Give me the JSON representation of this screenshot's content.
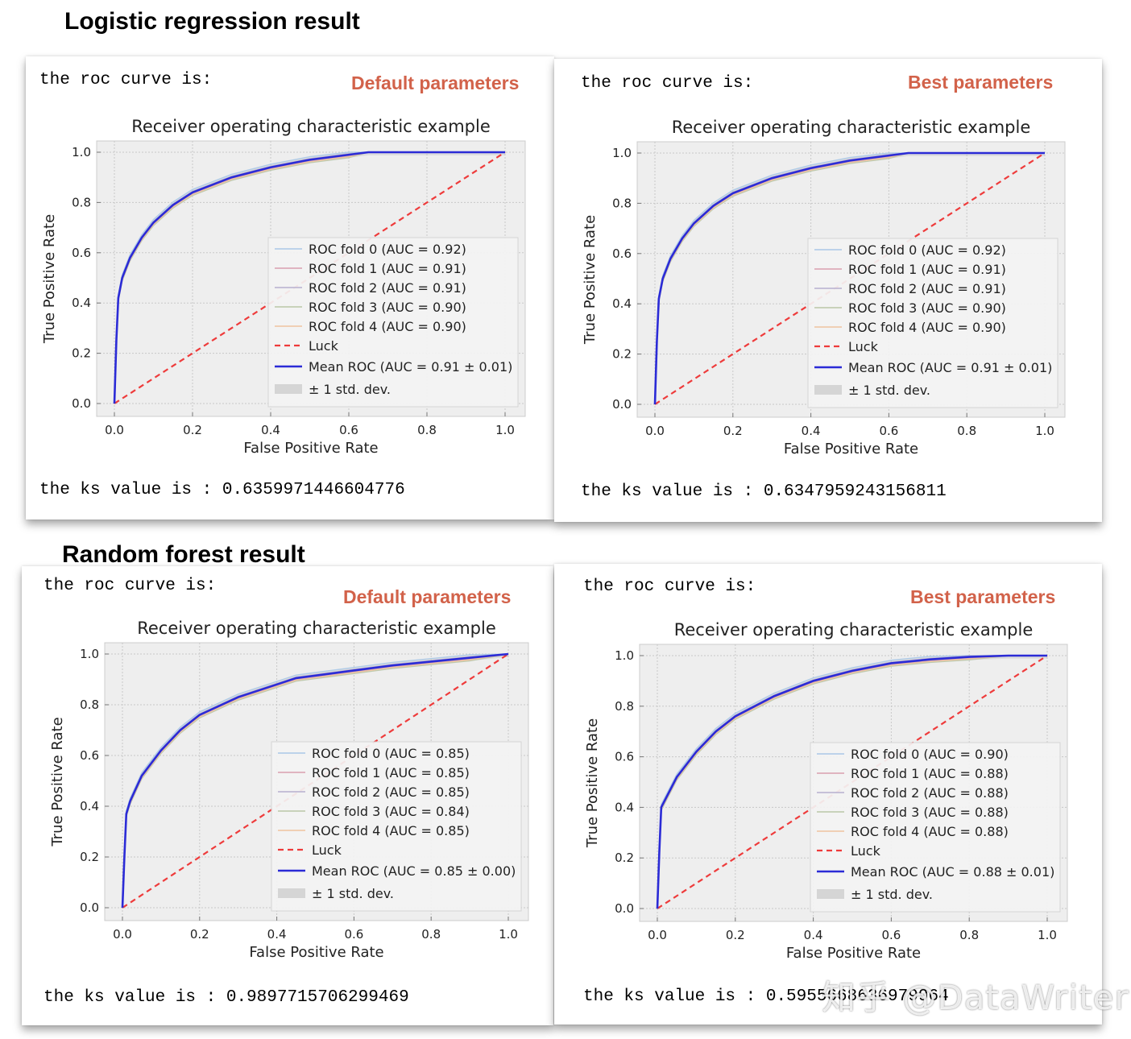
{
  "sections": {
    "logistic_title": "Logistic regression result",
    "forest_title": "Random forest result"
  },
  "panels": [
    {
      "roc_label": "the roc curve is:",
      "param_label": "Default parameters",
      "ks_text": "the ks value is : 0.6359971446604776"
    },
    {
      "roc_label": "the roc curve is:",
      "param_label": "Best parameters",
      "ks_text": "the ks value is : 0.6347959243156811"
    },
    {
      "roc_label": "the roc curve is:",
      "param_label": "Default parameters",
      "ks_text": "the ks value is : 0.9897715706299469"
    },
    {
      "roc_label": "the roc curve is:",
      "param_label": "Best parameters",
      "ks_text": "the ks value is : 0.5955668636979964"
    }
  ],
  "watermark": "知乎 @DataWriter",
  "colors": {
    "accent": "#d2624a",
    "mean_roc": "#2b2bd6",
    "luck": "#ee3b3b",
    "plot_bg": "#eeeeee"
  },
  "chart_data": [
    {
      "type": "line",
      "title": "Receiver operating characteristic example",
      "xlabel": "False Positive Rate",
      "ylabel": "True Positive Rate",
      "xlim": [
        0,
        1
      ],
      "ylim": [
        0,
        1
      ],
      "xticks": [
        "0.0",
        "0.2",
        "0.4",
        "0.6",
        "0.8",
        "1.0"
      ],
      "yticks": [
        "0.0",
        "0.2",
        "0.4",
        "0.6",
        "0.8",
        "1.0"
      ],
      "legend": [
        "ROC fold 0 (AUC = 0.92)",
        "ROC fold 1 (AUC = 0.91)",
        "ROC fold 2 (AUC = 0.91)",
        "ROC fold 3 (AUC = 0.90)",
        "ROC fold 4 (AUC = 0.90)",
        "Luck",
        "Mean ROC (AUC = 0.91 ± 0.01)",
        "± 1 std. dev."
      ],
      "legend_position": "lower-right",
      "x": [
        0,
        0.005,
        0.01,
        0.02,
        0.04,
        0.07,
        0.1,
        0.15,
        0.2,
        0.3,
        0.4,
        0.5,
        0.6,
        0.65,
        1.0
      ],
      "mean_roc": [
        0,
        0.25,
        0.42,
        0.5,
        0.58,
        0.66,
        0.72,
        0.79,
        0.84,
        0.9,
        0.94,
        0.97,
        0.99,
        1.0,
        1.0
      ]
    },
    {
      "type": "line",
      "title": "Receiver operating characteristic example",
      "xlabel": "False Positive Rate",
      "ylabel": "True Positive Rate",
      "xlim": [
        0,
        1
      ],
      "ylim": [
        0,
        1
      ],
      "xticks": [
        "0.0",
        "0.2",
        "0.4",
        "0.6",
        "0.8",
        "1.0"
      ],
      "yticks": [
        "0.0",
        "0.2",
        "0.4",
        "0.6",
        "0.8",
        "1.0"
      ],
      "legend": [
        "ROC fold 0 (AUC = 0.92)",
        "ROC fold 1 (AUC = 0.91)",
        "ROC fold 2 (AUC = 0.91)",
        "ROC fold 3 (AUC = 0.90)",
        "ROC fold 4 (AUC = 0.90)",
        "Luck",
        "Mean ROC (AUC = 0.91 ± 0.01)",
        "± 1 std. dev."
      ],
      "legend_position": "lower-right",
      "x": [
        0,
        0.005,
        0.01,
        0.02,
        0.04,
        0.07,
        0.1,
        0.15,
        0.2,
        0.3,
        0.4,
        0.5,
        0.6,
        0.65,
        1.0
      ],
      "mean_roc": [
        0,
        0.25,
        0.42,
        0.5,
        0.58,
        0.66,
        0.72,
        0.79,
        0.84,
        0.9,
        0.94,
        0.97,
        0.99,
        1.0,
        1.0
      ]
    },
    {
      "type": "line",
      "title": "Receiver operating characteristic example",
      "xlabel": "False Positive Rate",
      "ylabel": "True Positive Rate",
      "xlim": [
        0,
        1
      ],
      "ylim": [
        0,
        1
      ],
      "xticks": [
        "0.0",
        "0.2",
        "0.4",
        "0.6",
        "0.8",
        "1.0"
      ],
      "yticks": [
        "0.0",
        "0.2",
        "0.4",
        "0.6",
        "0.8",
        "1.0"
      ],
      "legend": [
        "ROC fold 0 (AUC = 0.85)",
        "ROC fold 1 (AUC = 0.85)",
        "ROC fold 2 (AUC = 0.85)",
        "ROC fold 3 (AUC = 0.84)",
        "ROC fold 4 (AUC = 0.85)",
        "Luck",
        "Mean ROC (AUC = 0.85 ± 0.00)",
        "± 1 std. dev."
      ],
      "legend_position": "lower-right",
      "x": [
        0,
        0.005,
        0.01,
        0.02,
        0.05,
        0.1,
        0.15,
        0.2,
        0.3,
        0.4,
        0.45,
        0.5,
        0.6,
        0.7,
        0.8,
        0.9,
        1.0
      ],
      "mean_roc": [
        0,
        0.2,
        0.37,
        0.42,
        0.52,
        0.62,
        0.7,
        0.76,
        0.83,
        0.88,
        0.905,
        0.915,
        0.935,
        0.955,
        0.97,
        0.985,
        1.0
      ]
    },
    {
      "type": "line",
      "title": "Receiver operating characteristic example",
      "xlabel": "False Positive Rate",
      "ylabel": "True Positive Rate",
      "xlim": [
        0,
        1
      ],
      "ylim": [
        0,
        1
      ],
      "xticks": [
        "0.0",
        "0.2",
        "0.4",
        "0.6",
        "0.8",
        "1.0"
      ],
      "yticks": [
        "0.0",
        "0.2",
        "0.4",
        "0.6",
        "0.8",
        "1.0"
      ],
      "legend": [
        "ROC fold 0 (AUC = 0.90)",
        "ROC fold 1 (AUC = 0.88)",
        "ROC fold 2 (AUC = 0.88)",
        "ROC fold 3 (AUC = 0.88)",
        "ROC fold 4 (AUC = 0.88)",
        "Luck",
        "Mean ROC (AUC = 0.88 ± 0.01)",
        "± 1 std. dev."
      ],
      "legend_position": "lower-right",
      "x": [
        0,
        0.005,
        0.01,
        0.02,
        0.05,
        0.1,
        0.15,
        0.2,
        0.3,
        0.4,
        0.5,
        0.6,
        0.7,
        0.8,
        0.9,
        1.0
      ],
      "mean_roc": [
        0,
        0.22,
        0.4,
        0.43,
        0.52,
        0.62,
        0.7,
        0.76,
        0.84,
        0.9,
        0.94,
        0.97,
        0.985,
        0.995,
        1.0,
        1.0
      ]
    }
  ]
}
